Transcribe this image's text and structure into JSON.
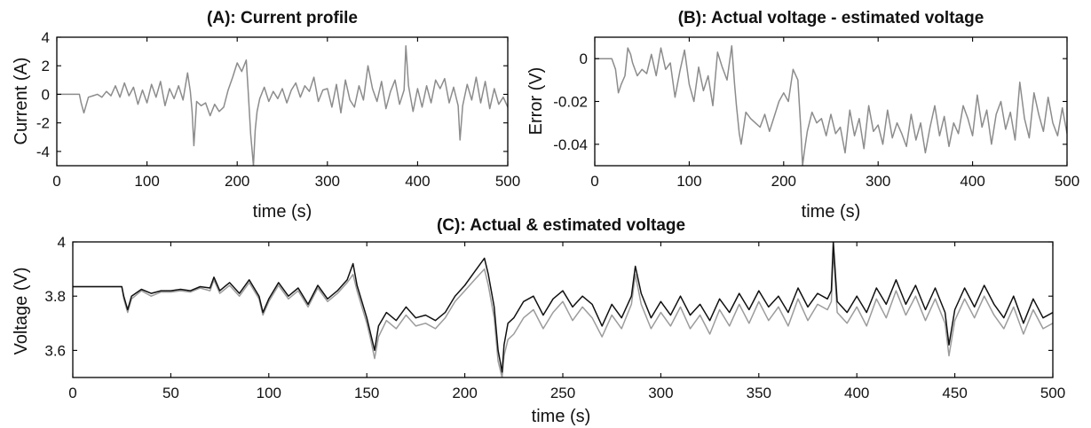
{
  "chart_data": [
    {
      "id": "A",
      "type": "line",
      "title": "(A): Current profile",
      "xlabel": "time (s)",
      "ylabel": "Current (A)",
      "xlim": [
        0,
        500
      ],
      "ylim": [
        -5,
        4
      ],
      "xticks": [
        0,
        100,
        200,
        300,
        400,
        500
      ],
      "yticks": [
        -4,
        -2,
        0,
        2,
        4
      ],
      "grid": false,
      "series": [
        {
          "color": "#8c8c8c",
          "x": [
            0,
            25,
            27,
            30,
            35,
            40,
            45,
            50,
            55,
            60,
            65,
            70,
            75,
            80,
            85,
            90,
            95,
            100,
            105,
            110,
            115,
            120,
            125,
            130,
            135,
            140,
            145,
            148,
            150,
            152,
            155,
            160,
            165,
            170,
            175,
            180,
            185,
            190,
            195,
            200,
            205,
            210,
            212,
            215,
            218,
            220,
            222,
            225,
            230,
            235,
            240,
            245,
            250,
            255,
            260,
            265,
            270,
            275,
            280,
            285,
            290,
            295,
            300,
            305,
            310,
            315,
            320,
            325,
            330,
            335,
            340,
            345,
            350,
            355,
            360,
            365,
            370,
            375,
            380,
            385,
            387,
            390,
            395,
            400,
            405,
            410,
            415,
            420,
            425,
            430,
            435,
            440,
            445,
            447,
            450,
            455,
            460,
            465,
            470,
            475,
            480,
            485,
            490,
            495,
            500
          ],
          "y": [
            0,
            0,
            -0.6,
            -1.3,
            -0.2,
            -0.1,
            0,
            -0.2,
            0.2,
            -0.1,
            0.6,
            -0.2,
            0.8,
            -0.1,
            0.5,
            -0.7,
            0.3,
            -0.6,
            0.7,
            -0.2,
            0.9,
            -0.8,
            0.4,
            -0.3,
            0.6,
            -0.4,
            1.5,
            0.2,
            -1.2,
            -3.6,
            -0.5,
            -0.8,
            -0.6,
            -1.5,
            -0.7,
            -1.2,
            -0.9,
            0.3,
            1.2,
            2.2,
            1.6,
            2.4,
            0.4,
            -2.8,
            -5,
            -2.5,
            -1.2,
            -0.3,
            0.5,
            -0.5,
            0.2,
            -0.3,
            0.4,
            -0.6,
            0.3,
            0.8,
            -0.2,
            0.6,
            0.2,
            1.2,
            -0.5,
            0.3,
            0.4,
            -0.9,
            0.7,
            -1.3,
            1.0,
            -0.4,
            -0.9,
            0.6,
            -0.4,
            2.0,
            0.4,
            -0.5,
            0.9,
            -1.0,
            0.2,
            1.0,
            -0.7,
            0.3,
            3.4,
            0.6,
            -1.2,
            0.4,
            -0.9,
            0.6,
            -0.6,
            1.0,
            0.4,
            1.1,
            -0.6,
            0.5,
            -0.8,
            -3.2,
            -0.8,
            0.7,
            -0.4,
            1.2,
            -0.6,
            0.9,
            -1.0,
            0.4,
            -0.7,
            -0.2,
            -0.9
          ]
        }
      ]
    },
    {
      "id": "B",
      "type": "line",
      "title": "(B): Actual voltage - estimated voltage",
      "xlabel": "time (s)",
      "ylabel": "Error (V)",
      "xlim": [
        0,
        500
      ],
      "ylim": [
        -0.05,
        0.01
      ],
      "xticks": [
        0,
        100,
        200,
        300,
        400,
        500
      ],
      "yticks": [
        0,
        -0.02,
        -0.04
      ],
      "ytick_labels": [
        "0",
        "-0.02",
        "-0.04"
      ],
      "grid": false,
      "series": [
        {
          "color": "#8c8c8c",
          "x": [
            0,
            18,
            22,
            25,
            28,
            32,
            35,
            38,
            40,
            45,
            50,
            55,
            60,
            65,
            70,
            75,
            80,
            85,
            90,
            95,
            100,
            105,
            110,
            115,
            120,
            125,
            130,
            135,
            140,
            145,
            148,
            150,
            153,
            155,
            160,
            165,
            170,
            175,
            180,
            185,
            190,
            195,
            200,
            205,
            210,
            215,
            218,
            220,
            222,
            225,
            230,
            235,
            240,
            245,
            250,
            255,
            260,
            265,
            270,
            275,
            280,
            285,
            290,
            295,
            300,
            305,
            310,
            315,
            320,
            325,
            330,
            335,
            340,
            345,
            350,
            355,
            360,
            365,
            370,
            375,
            380,
            385,
            390,
            395,
            400,
            405,
            410,
            415,
            420,
            425,
            430,
            435,
            440,
            445,
            450,
            455,
            460,
            465,
            470,
            475,
            480,
            485,
            490,
            495,
            500
          ],
          "y": [
            0,
            0,
            -0.005,
            -0.016,
            -0.012,
            -0.008,
            0.005,
            0.002,
            -0.002,
            -0.008,
            -0.005,
            -0.007,
            0.002,
            -0.008,
            0.005,
            -0.005,
            -0.002,
            -0.018,
            -0.006,
            0.004,
            -0.012,
            -0.02,
            -0.004,
            -0.015,
            -0.008,
            -0.022,
            0.003,
            -0.004,
            -0.01,
            0.006,
            -0.012,
            -0.022,
            -0.035,
            -0.04,
            -0.025,
            -0.028,
            -0.03,
            -0.032,
            -0.026,
            -0.034,
            -0.027,
            -0.02,
            -0.016,
            -0.02,
            -0.005,
            -0.01,
            -0.032,
            -0.05,
            -0.043,
            -0.034,
            -0.025,
            -0.03,
            -0.028,
            -0.036,
            -0.026,
            -0.035,
            -0.032,
            -0.044,
            -0.024,
            -0.036,
            -0.028,
            -0.042,
            -0.022,
            -0.034,
            -0.031,
            -0.04,
            -0.024,
            -0.037,
            -0.03,
            -0.035,
            -0.041,
            -0.026,
            -0.038,
            -0.03,
            -0.044,
            -0.032,
            -0.022,
            -0.036,
            -0.027,
            -0.041,
            -0.03,
            -0.035,
            -0.022,
            -0.028,
            -0.036,
            -0.017,
            -0.032,
            -0.024,
            -0.04,
            -0.026,
            -0.02,
            -0.033,
            -0.025,
            -0.038,
            -0.011,
            -0.028,
            -0.037,
            -0.016,
            -0.026,
            -0.034,
            -0.018,
            -0.03,
            -0.036,
            -0.023,
            -0.035
          ]
        }
      ]
    },
    {
      "id": "C",
      "type": "line",
      "title": "(C): Actual & estimated voltage",
      "xlabel": "time (s)",
      "ylabel": "Voltage (V)",
      "xlim": [
        0,
        500
      ],
      "ylim": [
        3.5,
        4.0
      ],
      "xticks": [
        0,
        50,
        100,
        150,
        200,
        250,
        300,
        350,
        400,
        450,
        500
      ],
      "yticks": [
        3.6,
        3.8,
        4.0
      ],
      "ytick_labels": [
        "3.6",
        "3.8",
        "4"
      ],
      "grid": false,
      "series": [
        {
          "color": "#9c9c9c",
          "x": [
            0,
            25,
            26,
            28,
            30,
            35,
            40,
            45,
            50,
            55,
            60,
            65,
            70,
            72,
            75,
            80,
            85,
            90,
            95,
            97,
            100,
            105,
            110,
            115,
            120,
            125,
            130,
            135,
            140,
            143,
            145,
            150,
            152,
            154,
            156,
            160,
            165,
            170,
            175,
            180,
            185,
            190,
            195,
            200,
            205,
            210,
            212,
            215,
            217,
            219,
            220,
            222,
            225,
            230,
            235,
            240,
            245,
            250,
            255,
            260,
            265,
            270,
            275,
            280,
            285,
            287,
            290,
            295,
            300,
            305,
            310,
            315,
            320,
            325,
            330,
            335,
            340,
            345,
            350,
            355,
            360,
            365,
            370,
            375,
            380,
            385,
            387,
            388,
            390,
            395,
            400,
            405,
            410,
            415,
            420,
            425,
            430,
            435,
            440,
            445,
            447,
            450,
            455,
            460,
            465,
            470,
            475,
            480,
            485,
            490,
            495,
            500
          ],
          "y": [
            3.835,
            3.835,
            3.79,
            3.74,
            3.79,
            3.82,
            3.8,
            3.815,
            3.815,
            3.82,
            3.815,
            3.83,
            3.82,
            3.86,
            3.81,
            3.84,
            3.8,
            3.85,
            3.79,
            3.73,
            3.78,
            3.84,
            3.79,
            3.82,
            3.76,
            3.83,
            3.78,
            3.81,
            3.85,
            3.88,
            3.82,
            3.7,
            3.64,
            3.57,
            3.65,
            3.71,
            3.68,
            3.73,
            3.69,
            3.7,
            3.68,
            3.72,
            3.78,
            3.82,
            3.86,
            3.9,
            3.84,
            3.72,
            3.56,
            3.5,
            3.58,
            3.64,
            3.66,
            3.72,
            3.75,
            3.68,
            3.74,
            3.78,
            3.71,
            3.76,
            3.72,
            3.65,
            3.73,
            3.68,
            3.77,
            3.88,
            3.77,
            3.68,
            3.74,
            3.69,
            3.76,
            3.68,
            3.73,
            3.66,
            3.75,
            3.69,
            3.77,
            3.7,
            3.78,
            3.71,
            3.76,
            3.69,
            3.79,
            3.71,
            3.77,
            3.75,
            3.78,
            3.97,
            3.74,
            3.7,
            3.76,
            3.69,
            3.79,
            3.72,
            3.82,
            3.73,
            3.8,
            3.71,
            3.79,
            3.7,
            3.58,
            3.71,
            3.79,
            3.72,
            3.8,
            3.73,
            3.68,
            3.76,
            3.66,
            3.75,
            3.68,
            3.7
          ]
        },
        {
          "color": "#111111",
          "x": [
            0,
            25,
            26,
            28,
            30,
            35,
            40,
            45,
            50,
            55,
            60,
            65,
            70,
            72,
            75,
            80,
            85,
            90,
            95,
            97,
            100,
            105,
            110,
            115,
            120,
            125,
            130,
            135,
            140,
            143,
            145,
            150,
            152,
            154,
            156,
            160,
            165,
            170,
            175,
            180,
            185,
            190,
            195,
            200,
            205,
            210,
            212,
            215,
            217,
            219,
            220,
            222,
            225,
            230,
            235,
            240,
            245,
            250,
            255,
            260,
            265,
            270,
            275,
            280,
            285,
            287,
            290,
            295,
            300,
            305,
            310,
            315,
            320,
            325,
            330,
            335,
            340,
            345,
            350,
            355,
            360,
            365,
            370,
            375,
            380,
            385,
            387,
            388,
            390,
            395,
            400,
            405,
            410,
            415,
            420,
            425,
            430,
            435,
            440,
            445,
            447,
            450,
            455,
            460,
            465,
            470,
            475,
            480,
            485,
            490,
            495,
            500
          ],
          "y": [
            3.835,
            3.835,
            3.8,
            3.75,
            3.8,
            3.825,
            3.81,
            3.82,
            3.82,
            3.825,
            3.82,
            3.835,
            3.83,
            3.87,
            3.82,
            3.85,
            3.81,
            3.86,
            3.8,
            3.74,
            3.79,
            3.85,
            3.8,
            3.83,
            3.77,
            3.84,
            3.79,
            3.82,
            3.86,
            3.92,
            3.84,
            3.72,
            3.66,
            3.6,
            3.69,
            3.74,
            3.71,
            3.76,
            3.72,
            3.73,
            3.71,
            3.74,
            3.8,
            3.84,
            3.89,
            3.94,
            3.88,
            3.76,
            3.6,
            3.52,
            3.62,
            3.7,
            3.72,
            3.78,
            3.8,
            3.73,
            3.79,
            3.82,
            3.76,
            3.8,
            3.77,
            3.69,
            3.77,
            3.72,
            3.8,
            3.91,
            3.81,
            3.72,
            3.78,
            3.73,
            3.8,
            3.73,
            3.77,
            3.71,
            3.79,
            3.74,
            3.81,
            3.75,
            3.82,
            3.76,
            3.8,
            3.74,
            3.83,
            3.76,
            3.81,
            3.79,
            3.82,
            4.0,
            3.78,
            3.74,
            3.8,
            3.74,
            3.83,
            3.77,
            3.86,
            3.77,
            3.84,
            3.75,
            3.83,
            3.74,
            3.62,
            3.75,
            3.83,
            3.76,
            3.84,
            3.77,
            3.72,
            3.8,
            3.7,
            3.79,
            3.72,
            3.74
          ]
        }
      ]
    }
  ]
}
